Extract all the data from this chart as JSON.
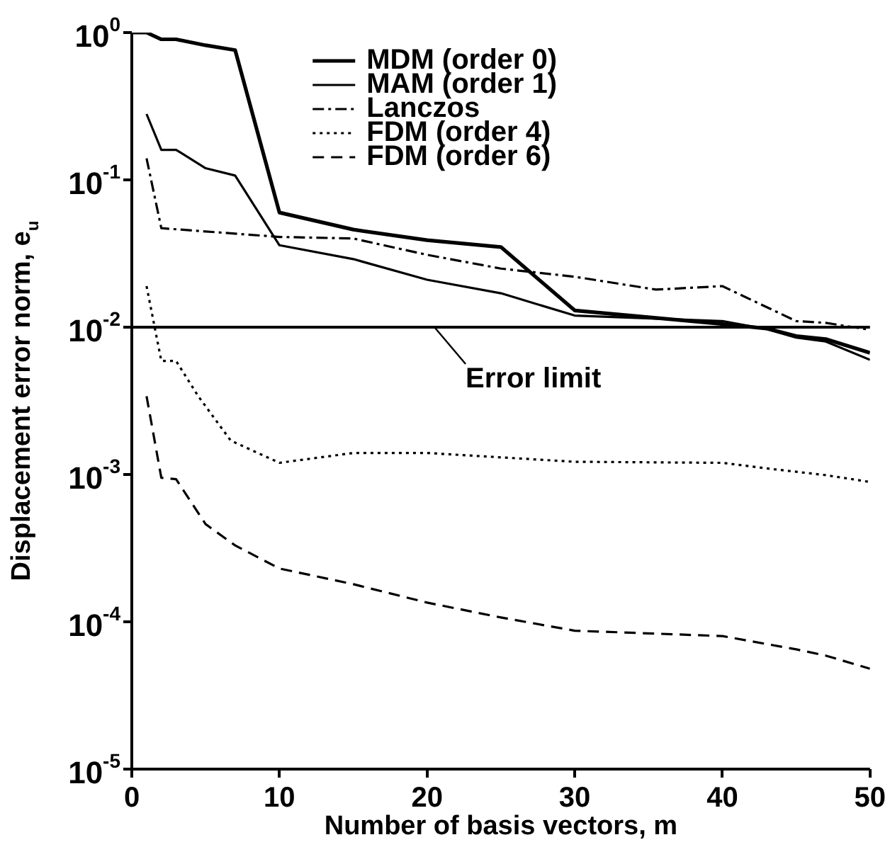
{
  "chart_data": {
    "type": "line",
    "xlabel": "Number of basis vectors, m",
    "ylabel": "Displacement error norm, e$_{u}$",
    "xlim": [
      0,
      50
    ],
    "xticks": [
      0,
      10,
      20,
      30,
      40,
      50
    ],
    "ylim": [
      1e-05,
      1
    ],
    "yticks": [
      {
        "value": 1,
        "label": "10$^{0}$"
      },
      {
        "value": 0.1,
        "label": "10$^{-1}$"
      },
      {
        "value": 0.01,
        "label": "10$^{-2}$"
      },
      {
        "value": 0.001,
        "label": "10$^{-3}$"
      },
      {
        "value": 0.0001,
        "label": "10$^{-4}$"
      },
      {
        "value": 1e-05,
        "label": "10$^{-5}$"
      }
    ],
    "log": "y",
    "grid": false,
    "legend": "top",
    "marker": "none",
    "series": [
      {
        "name": "MDM (order 0)",
        "color": "#000000",
        "line_style": "solid",
        "x": [
          0,
          1,
          2,
          3,
          5,
          7,
          10,
          15,
          20,
          25,
          30,
          40,
          43,
          45,
          47,
          50
        ],
        "values": [
          1,
          1,
          0.9,
          0.9,
          0.82,
          0.76,
          0.06,
          0.046,
          0.039,
          0.035,
          0.013,
          0.0105,
          0.0098,
          0.0087,
          0.0083,
          0.0067
        ]
      },
      {
        "name": "MAM (order 1)",
        "color": "#000000",
        "line_style": "solid",
        "x": [
          1,
          2,
          3,
          5,
          7,
          10,
          15,
          20,
          25,
          30,
          40,
          43,
          45,
          47,
          50
        ],
        "values": [
          0.28,
          0.16,
          0.16,
          0.12,
          0.107,
          0.036,
          0.029,
          0.021,
          0.017,
          0.012,
          0.011,
          0.0097,
          0.0085,
          0.008,
          0.006
        ]
      },
      {
        "name": "Lanczos",
        "color": "#000000",
        "line_style": "dashdot",
        "x": [
          1,
          2,
          10,
          15,
          20,
          25,
          30,
          35.5,
          40,
          45,
          47,
          50
        ],
        "values": [
          0.14,
          0.047,
          0.041,
          0.04,
          0.031,
          0.025,
          0.022,
          0.018,
          0.019,
          0.011,
          0.0107,
          0.0096
        ]
      },
      {
        "name": "FDM (order 4)",
        "color": "#000000",
        "line_style": "dotted",
        "x": [
          1,
          2,
          3,
          4.5,
          6.7,
          10,
          15,
          20,
          30,
          40,
          43,
          47,
          50
        ],
        "values": [
          0.019,
          0.0059,
          0.0059,
          0.0034,
          0.0017,
          0.0012,
          0.0014,
          0.0014,
          0.00122,
          0.0012,
          0.0011,
          0.00099,
          0.00089
        ]
      },
      {
        "name": "FDM (order 6)",
        "color": "#000000",
        "line_style": "dashed",
        "x": [
          1,
          2,
          3,
          5,
          7,
          10,
          15,
          20,
          25,
          30,
          40,
          45,
          47,
          50
        ],
        "values": [
          0.0034,
          0.00095,
          0.00093,
          0.00046,
          0.00033,
          0.00023,
          0.00018,
          0.000135,
          0.000107,
          8.7e-05,
          8e-05,
          6.5e-05,
          5.9e-05,
          4.8e-05
        ]
      }
    ],
    "ref_lines": [
      {
        "axis": "y",
        "value": 0.01,
        "label": "Error limit",
        "color": "#000000",
        "line_style": "solid"
      }
    ]
  }
}
